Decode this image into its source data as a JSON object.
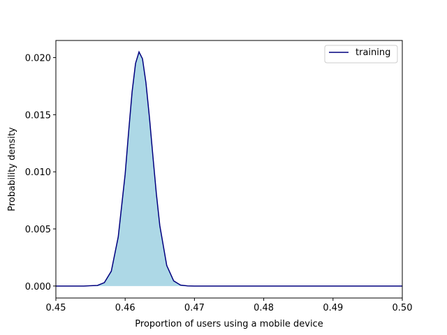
{
  "chart_data": {
    "type": "area",
    "xlabel": "Proportion of users using a mobile device",
    "ylabel": "Probability density",
    "xlim": [
      0.45,
      0.5
    ],
    "ylim": [
      -0.00105,
      0.0215
    ],
    "x_ticks": [
      "0.45",
      "0.46",
      "0.47",
      "0.48",
      "0.49",
      "0.50"
    ],
    "y_ticks": [
      "0.000",
      "0.005",
      "0.010",
      "0.015",
      "0.020"
    ],
    "grid": false,
    "legend_position": "top-right",
    "series": [
      {
        "name": "training",
        "line_color": "#00007f",
        "fill_color": "#add8e6",
        "x": [
          0.45,
          0.454,
          0.456,
          0.457,
          0.458,
          0.459,
          0.46,
          0.4605,
          0.461,
          0.4615,
          0.462,
          0.4625,
          0.463,
          0.4635,
          0.464,
          0.4645,
          0.465,
          0.466,
          0.467,
          0.468,
          0.469,
          0.47,
          0.475,
          0.48,
          0.49,
          0.5
        ],
        "y": [
          0.0,
          0.0,
          5e-05,
          0.0003,
          0.0013,
          0.0043,
          0.0098,
          0.0135,
          0.017,
          0.0195,
          0.0205,
          0.0199,
          0.0178,
          0.0148,
          0.0114,
          0.0081,
          0.0053,
          0.0018,
          0.00045,
          8e-05,
          1e-05,
          0.0,
          0.0,
          0.0,
          0.0,
          0.0
        ]
      }
    ]
  }
}
